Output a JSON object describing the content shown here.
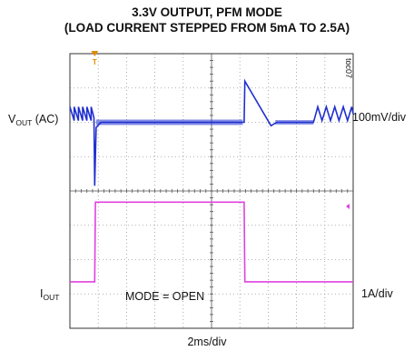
{
  "title_line1": "3.3V OUTPUT, PFM MODE",
  "title_line2": "(LOAD CURRENT STEPPED FROM 5mA TO 2.5A)",
  "vout_label_main": "V",
  "vout_label_sub": "OUT",
  "vout_label_suffix": " (AC)",
  "iout_label_main": "I",
  "iout_label_sub": "OUT",
  "vout_scale": "100mV/div",
  "iout_scale": "1A/div",
  "time_scale": "2ms/div",
  "annotation": "MODE = OPEN",
  "figure_id": "toc07",
  "trigger_marker": "T",
  "colors": {
    "vout_trace": "#1f2fd0",
    "iout_trace": "#e040e0",
    "trigger": "#e08a00",
    "grid": "#555555"
  },
  "chart_data": {
    "type": "line",
    "title": "3.3V OUTPUT, PFM MODE (LOAD CURRENT STEPPED FROM 5mA TO 2.5A)",
    "x_unit": "ms",
    "xlim": [
      0,
      20
    ],
    "x_divisions": 10,
    "y_divisions": 8,
    "series": [
      {
        "name": "VOUT (AC)",
        "unit": "mV",
        "scale": "100mV/div",
        "points": [
          [
            0,
            40
          ],
          [
            0.3,
            0
          ],
          [
            0.3,
            40
          ],
          [
            0.6,
            0
          ],
          [
            0.6,
            40
          ],
          [
            0.9,
            0
          ],
          [
            0.9,
            40
          ],
          [
            1.2,
            0
          ],
          [
            1.2,
            40
          ],
          [
            1.5,
            0
          ],
          [
            1.5,
            40
          ],
          [
            1.7,
            8
          ],
          [
            1.75,
            -190
          ],
          [
            1.85,
            -20
          ],
          [
            2.2,
            -5
          ],
          [
            4,
            -5
          ],
          [
            8,
            -5
          ],
          [
            12.2,
            -5
          ],
          [
            12.3,
            -5
          ],
          [
            12.35,
            115
          ],
          [
            14.2,
            -15
          ],
          [
            14.6,
            -5
          ],
          [
            17.2,
            -5
          ],
          [
            17.5,
            40
          ],
          [
            17.8,
            0
          ],
          [
            18.1,
            40
          ],
          [
            18.4,
            0
          ],
          [
            18.7,
            40
          ],
          [
            19.0,
            0
          ],
          [
            19.3,
            40
          ],
          [
            19.6,
            0
          ],
          [
            19.9,
            40
          ],
          [
            20,
            20
          ]
        ]
      },
      {
        "name": "IOUT",
        "unit": "A",
        "scale": "1A/div",
        "points": [
          [
            0,
            0.005
          ],
          [
            1.75,
            0.005
          ],
          [
            1.8,
            2.5
          ],
          [
            12.3,
            2.5
          ],
          [
            12.35,
            0.005
          ],
          [
            20,
            0.005
          ]
        ]
      }
    ],
    "annotations": [
      "MODE = OPEN"
    ]
  }
}
